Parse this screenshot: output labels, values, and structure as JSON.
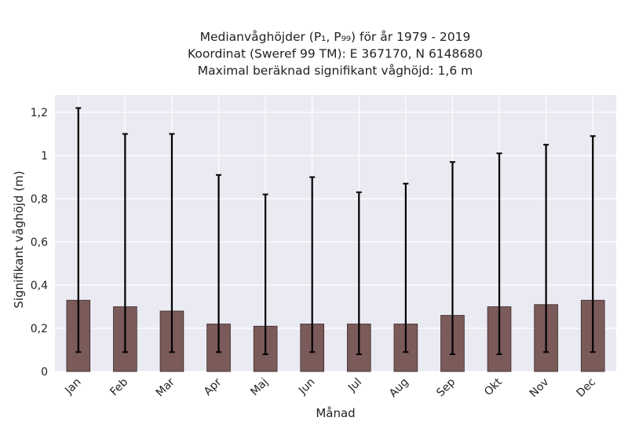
{
  "chart_data": {
    "type": "bar",
    "title_lines": [
      "Medianvåghöjder (P₁, P₉₉) för år 1979 - 2019",
      "Koordinat (Sweref 99 TM): E 367170, N 6148680",
      "Maximal beräknad signifikant våghöjd: 1,6 m"
    ],
    "xlabel": "Månad",
    "ylabel": "Signifikant våghöjd (m)",
    "categories": [
      "Jan",
      "Feb",
      "Mar",
      "Apr",
      "Maj",
      "Jun",
      "Jul",
      "Aug",
      "Sep",
      "Okt",
      "Nov",
      "Dec"
    ],
    "values": [
      0.33,
      0.3,
      0.28,
      0.22,
      0.21,
      0.22,
      0.22,
      0.22,
      0.26,
      0.3,
      0.31,
      0.33
    ],
    "p1": [
      0.09,
      0.09,
      0.09,
      0.09,
      0.08,
      0.09,
      0.08,
      0.09,
      0.08,
      0.08,
      0.09,
      0.09
    ],
    "p99": [
      1.22,
      1.1,
      1.1,
      0.91,
      0.82,
      0.9,
      0.83,
      0.87,
      0.97,
      1.01,
      1.05,
      1.09
    ],
    "ylim": [
      0,
      1.28
    ],
    "yticks": [
      0,
      0.2,
      0.4,
      0.6,
      0.8,
      1,
      1.2
    ],
    "ytick_labels": [
      "0",
      "0,2",
      "0,4",
      "0,6",
      "0,8",
      "1",
      "1,2"
    ],
    "grid": true,
    "colors": {
      "bar": "#7b5a5a",
      "bar_edge": "#3a2a2a",
      "error": "#000000",
      "background": "#eaeaf2",
      "grid": "#ffffff"
    }
  }
}
